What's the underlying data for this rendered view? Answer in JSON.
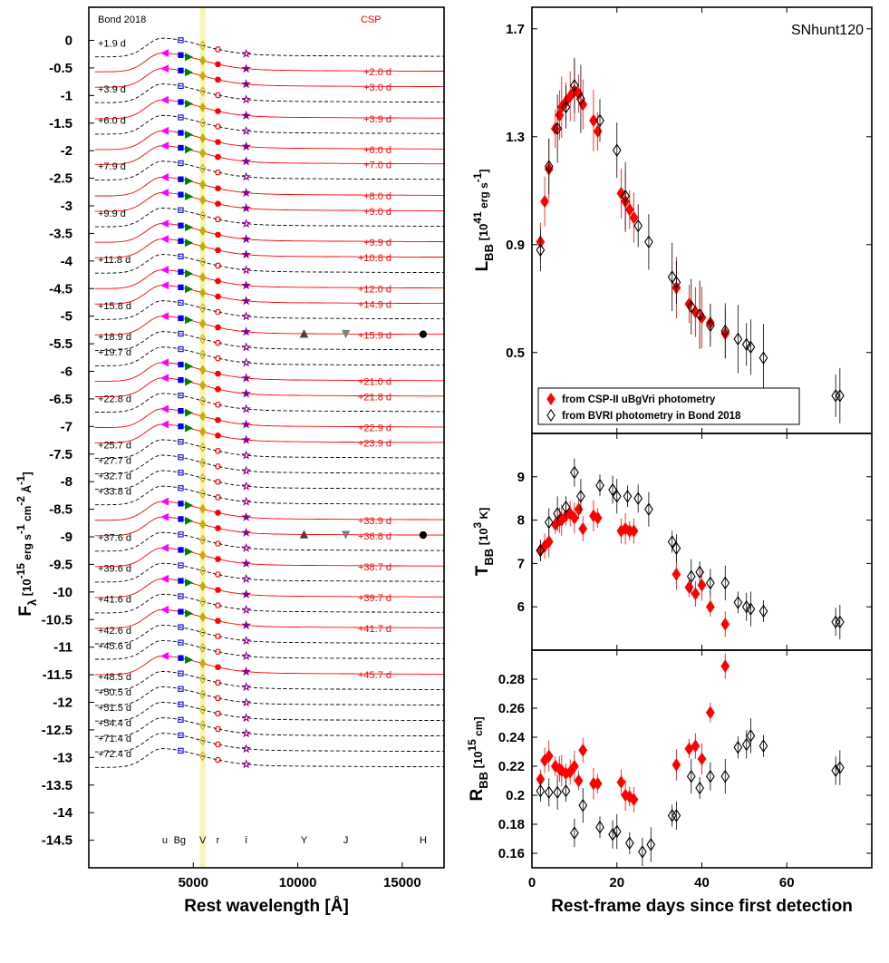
{
  "colors": {
    "csp": "#ff0000",
    "bond": "#000000",
    "u": "#ff00ff",
    "B": "#0000ff",
    "g": "#008000",
    "V": "#ccaa00",
    "r": "#ff0000",
    "i": "#8b008b",
    "Y": "#5a3a30",
    "J": "#808080",
    "H": "#000000",
    "v_band_fill": "#f7f3b0"
  },
  "chart_data": [
    {
      "type": "line",
      "panel": "spectral-energy-distributions",
      "ylabel": "F_λ [10^-15 erg s^-1 cm^-2 Å^-1]",
      "xlabel": "Rest wavelength [Å]",
      "xlim": [
        0,
        17000
      ],
      "ylim": [
        -15,
        0.6
      ],
      "xticks": [
        "5000",
        "10000",
        "15000"
      ],
      "yticks": [
        "0",
        "-0.5",
        "-1",
        "-1.5",
        "-2",
        "-2.5",
        "-3",
        "-3.5",
        "-4",
        "-4.5",
        "-5",
        "-5.5",
        "-6",
        "-6.5",
        "-7",
        "-7.5",
        "-8",
        "-8.5",
        "-9",
        "-9.5",
        "-10",
        "-10.5",
        "-11",
        "-11.5",
        "-12",
        "-12.5",
        "-13",
        "-13.5",
        "-14",
        "-14.5"
      ],
      "source_labels": [
        "Bond 2018",
        "CSP"
      ],
      "band_labels": [
        "u",
        "Bg",
        "V",
        "r",
        "i",
        "Y",
        "J",
        "H"
      ],
      "band_wavelengths": [
        3640,
        4440,
        5450,
        6180,
        7530,
        10300,
        12300,
        16000
      ],
      "epochs": [
        {
          "label": "+1.9 d",
          "offset": 0.0,
          "source": "Bond"
        },
        {
          "label": "+2.0 d",
          "offset": -0.27,
          "source": "CSP"
        },
        {
          "label": "+3.0 d",
          "offset": -0.55,
          "source": "CSP"
        },
        {
          "label": "+3.9 d",
          "offset": -0.83,
          "source": "Bond"
        },
        {
          "label": "+3.9 d",
          "offset": -1.12,
          "source": "CSP"
        },
        {
          "label": "+6.0 d",
          "offset": -1.4,
          "source": "Bond"
        },
        {
          "label": "+6.0 d",
          "offset": -1.68,
          "source": "CSP"
        },
        {
          "label": "+7.0 d",
          "offset": -1.95,
          "source": "CSP"
        },
        {
          "label": "+7.9 d",
          "offset": -2.23,
          "source": "Bond"
        },
        {
          "label": "+8.0 d",
          "offset": -2.52,
          "source": "CSP"
        },
        {
          "label": "+9.0 d",
          "offset": -2.8,
          "source": "CSP"
        },
        {
          "label": "+9.9 d",
          "offset": -3.08,
          "source": "Bond"
        },
        {
          "label": "+9.9 d",
          "offset": -3.36,
          "source": "CSP"
        },
        {
          "label": "+10.8 d",
          "offset": -3.64,
          "source": "CSP"
        },
        {
          "label": "+11.8 d",
          "offset": -3.92,
          "source": "Bond"
        },
        {
          "label": "+12.0 d",
          "offset": -4.2,
          "source": "CSP"
        },
        {
          "label": "+14.9 d",
          "offset": -4.48,
          "source": "CSP"
        },
        {
          "label": "+15.8 d",
          "offset": -4.76,
          "source": "Bond"
        },
        {
          "label": "+15.9 d",
          "offset": -5.04,
          "source": "CSP",
          "nir": true
        },
        {
          "label": "+18.9 d",
          "offset": -5.32,
          "source": "Bond"
        },
        {
          "label": "+19.7 d",
          "offset": -5.6,
          "source": "Bond"
        },
        {
          "label": "+21.0 d",
          "offset": -5.88,
          "source": "CSP"
        },
        {
          "label": "+21.8 d",
          "offset": -6.16,
          "source": "CSP"
        },
        {
          "label": "+22.8 d",
          "offset": -6.44,
          "source": "Bond"
        },
        {
          "label": "+22.9 d",
          "offset": -6.72,
          "source": "CSP"
        },
        {
          "label": "+23.9 d",
          "offset": -7.0,
          "source": "CSP"
        },
        {
          "label": "+25.7 d",
          "offset": -7.28,
          "source": "Bond"
        },
        {
          "label": "+27.7 d",
          "offset": -7.56,
          "source": "Bond"
        },
        {
          "label": "+32.7 d",
          "offset": -7.84,
          "source": "Bond"
        },
        {
          "label": "+33.8 d",
          "offset": -8.12,
          "source": "Bond"
        },
        {
          "label": "+33.9 d",
          "offset": -8.4,
          "source": "CSP"
        },
        {
          "label": "+36.8 d",
          "offset": -8.68,
          "source": "CSP",
          "nir": true
        },
        {
          "label": "+37.6 d",
          "offset": -8.96,
          "source": "Bond"
        },
        {
          "label": "+38.7 d",
          "offset": -9.24,
          "source": "CSP"
        },
        {
          "label": "+39.6 d",
          "offset": -9.52,
          "source": "Bond"
        },
        {
          "label": "+39.7 d",
          "offset": -9.8,
          "source": "CSP"
        },
        {
          "label": "+41.6 d",
          "offset": -10.08,
          "source": "Bond"
        },
        {
          "label": "+41.7 d",
          "offset": -10.36,
          "source": "CSP"
        },
        {
          "label": "+42.6 d",
          "offset": -10.64,
          "source": "Bond"
        },
        {
          "label": "+45.6 d",
          "offset": -10.92,
          "source": "Bond"
        },
        {
          "label": "+45.7 d",
          "offset": -11.2,
          "source": "CSP"
        },
        {
          "label": "+48.5 d",
          "offset": -11.48,
          "source": "Bond"
        },
        {
          "label": "+50.5 d",
          "offset": -11.76,
          "source": "Bond"
        },
        {
          "label": "+51.5 d",
          "offset": -12.04,
          "source": "Bond"
        },
        {
          "label": "+54.4 d",
          "offset": -12.32,
          "source": "Bond"
        },
        {
          "label": "+71.4 d",
          "offset": -12.6,
          "source": "Bond"
        },
        {
          "label": "+72.4 d",
          "offset": -12.88,
          "source": "Bond"
        }
      ]
    },
    {
      "type": "scatter",
      "panel": "luminosity",
      "title": "SNhunt120",
      "ylabel": "L_BB [10^41 erg s^-1]",
      "xlim": [
        0,
        80
      ],
      "ylim": [
        0.2,
        1.78
      ],
      "yticks": [
        "0.5",
        "0.9",
        "1.3",
        "1.7"
      ],
      "legend": [
        "from CSP-II uBgVri photometry",
        "from BVRI photometry in Bond 2018"
      ],
      "legend_position": "bottom-left",
      "series": [
        {
          "name": "CSP",
          "x": [
            2,
            3,
            4,
            5.5,
            6.5,
            7,
            8,
            9,
            10,
            11,
            12,
            14.5,
            15.5,
            21,
            22,
            23,
            24,
            34,
            37,
            38.5,
            40,
            42,
            45.5
          ],
          "y": [
            0.91,
            1.06,
            1.18,
            1.33,
            1.38,
            1.41,
            1.43,
            1.45,
            1.47,
            1.46,
            1.42,
            1.36,
            1.32,
            1.09,
            1.06,
            1.03,
            1.0,
            0.74,
            0.68,
            0.65,
            0.63,
            0.61,
            0.57
          ]
        },
        {
          "name": "Bond",
          "x": [
            2,
            4,
            6,
            8,
            10,
            11.5,
            16,
            20,
            22,
            25,
            27.5,
            33,
            34,
            37.5,
            39.5,
            42,
            45.5,
            48.5,
            50.5,
            51.5,
            54.5,
            71.5,
            72.5
          ],
          "y": [
            0.88,
            1.19,
            1.33,
            1.41,
            1.49,
            1.44,
            1.36,
            1.25,
            1.08,
            0.97,
            0.91,
            0.78,
            0.76,
            0.67,
            0.64,
            0.6,
            0.58,
            0.55,
            0.53,
            0.52,
            0.48,
            0.34,
            0.34
          ]
        }
      ]
    },
    {
      "type": "scatter",
      "panel": "temperature",
      "ylabel": "T_BB [10^3 K]",
      "xlim": [
        0,
        80
      ],
      "ylim": [
        5.0,
        10.0
      ],
      "yticks": [
        "6",
        "7",
        "8",
        "9"
      ],
      "series": [
        {
          "name": "CSP",
          "x": [
            2,
            3,
            4,
            5.5,
            6.5,
            7,
            8,
            9,
            10,
            11,
            12,
            14.5,
            15.5,
            21,
            22,
            23,
            24,
            34,
            37,
            38.5,
            40,
            42,
            45.5
          ],
          "y": [
            7.3,
            7.4,
            7.5,
            7.9,
            8.0,
            8.0,
            8.1,
            8.15,
            8.05,
            8.25,
            7.8,
            8.1,
            8.05,
            7.75,
            7.8,
            7.75,
            7.75,
            6.75,
            6.45,
            6.3,
            6.5,
            6.0,
            5.6
          ]
        },
        {
          "name": "Bond",
          "x": [
            2,
            4,
            6,
            8,
            10,
            11.5,
            16,
            19,
            20,
            22.5,
            25,
            27.5,
            33,
            34,
            37.5,
            39.5,
            42,
            45.5,
            48.5,
            50.5,
            51.5,
            54.5,
            71.5,
            72.5
          ],
          "y": [
            7.3,
            7.95,
            8.15,
            8.3,
            9.1,
            8.55,
            8.8,
            8.7,
            8.55,
            8.55,
            8.5,
            8.25,
            7.5,
            7.35,
            6.7,
            6.8,
            6.55,
            6.55,
            6.1,
            6.0,
            5.95,
            5.9,
            5.65,
            5.65
          ]
        }
      ]
    },
    {
      "type": "scatter",
      "panel": "radius",
      "ylabel": "R_BB [10^15 cm]",
      "xlabel": "Rest-frame days since first detection",
      "xlim": [
        0,
        80
      ],
      "ylim": [
        0.15,
        0.3
      ],
      "xticks": [
        "0",
        "20",
        "40",
        "60"
      ],
      "yticks": [
        "0.16",
        "0.18",
        "0.2",
        "0.22",
        "0.24",
        "0.26",
        "0.28"
      ],
      "series": [
        {
          "name": "CSP",
          "x": [
            2,
            3,
            4,
            5.5,
            6.5,
            7,
            8,
            9,
            10,
            11,
            12,
            14.5,
            15.5,
            21,
            22,
            23,
            24,
            34,
            37,
            38.5,
            40,
            42,
            45.5
          ],
          "y": [
            0.211,
            0.224,
            0.227,
            0.22,
            0.218,
            0.217,
            0.215,
            0.216,
            0.22,
            0.21,
            0.231,
            0.208,
            0.208,
            0.209,
            0.2,
            0.199,
            0.197,
            0.221,
            0.232,
            0.234,
            0.225,
            0.257,
            0.289
          ]
        },
        {
          "name": "Bond",
          "x": [
            2,
            4,
            6,
            8,
            10,
            12,
            16,
            19,
            20,
            23,
            26,
            28,
            33,
            34,
            37.5,
            39.5,
            42,
            45.5,
            48.5,
            50.5,
            51.5,
            54.5,
            71.5,
            72.5
          ],
          "y": [
            0.203,
            0.202,
            0.202,
            0.203,
            0.174,
            0.193,
            0.178,
            0.173,
            0.175,
            0.167,
            0.161,
            0.166,
            0.186,
            0.186,
            0.213,
            0.205,
            0.213,
            0.213,
            0.233,
            0.235,
            0.241,
            0.234,
            0.217,
            0.219
          ]
        }
      ]
    }
  ]
}
